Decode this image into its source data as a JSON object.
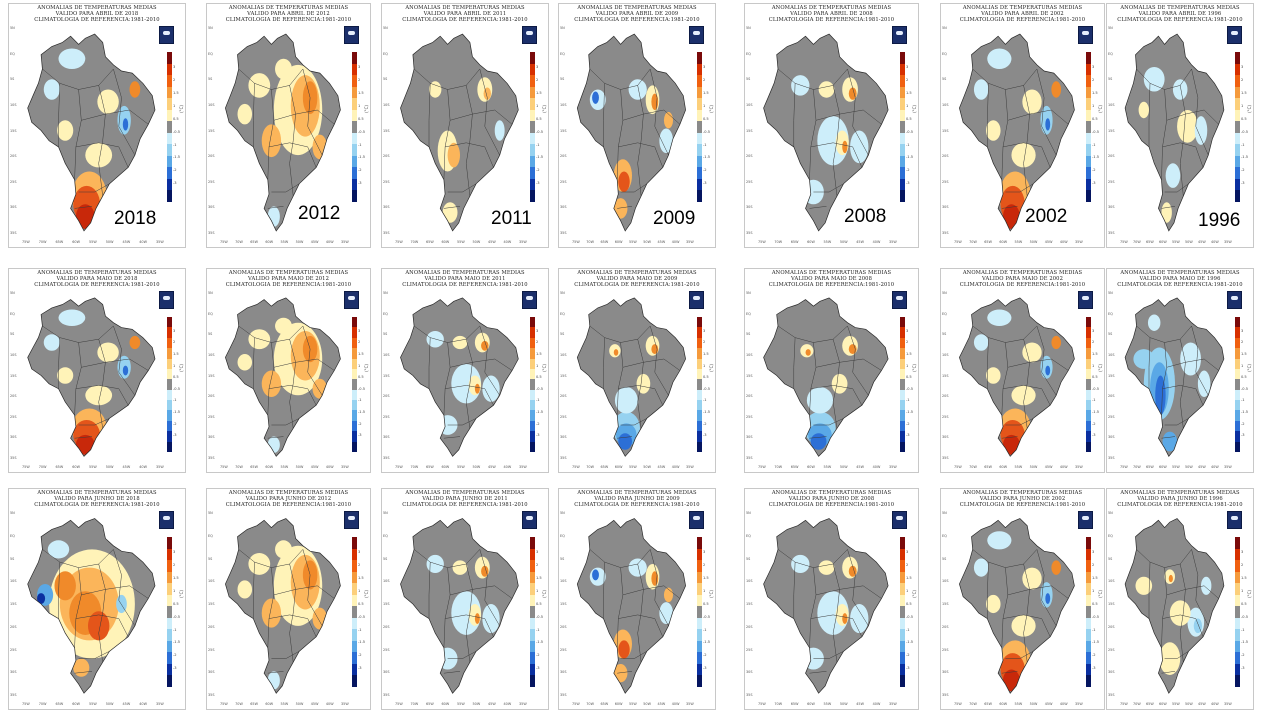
{
  "figure": {
    "rows": [
      {
        "month": "ABRIL",
        "panels": [
          {
            "year_label": "2018",
            "title": [
              "ANOMALIAS DE TEMPERATURAS MEDIAS",
              "VALIDO PARA ABRIL DE 2018",
              "CLIMATOLOGIA DE REFERENCIA:1981-2010"
            ],
            "pattern": "south-hot"
          },
          {
            "year_label": "2012",
            "title": [
              "ANOMALIAS DE TEMPERATURAS MEDIAS",
              "VALIDO PARA ABRIL DE 2012",
              "CLIMATOLOGIA DE REFERENCIA:1981-2010"
            ],
            "pattern": "center-east-warm"
          },
          {
            "year_label": "2011",
            "title": [
              "ANOMALIAS DE TEMPERATURAS MEDIAS",
              "VALIDO PARA ABRIL DE 2011",
              "CLIMATOLOGIA DE REFERENCIA:1981-2010"
            ],
            "pattern": "mostly-neutral"
          },
          {
            "year_label": "2009",
            "title": [
              "ANOMALIAS DE TEMPERATURAS MEDIAS",
              "VALIDO PARA ABRIL DE 2009",
              "CLIMATOLOGIA DE REFERENCIA:1981-2010"
            ],
            "pattern": "mixed"
          },
          {
            "year_label": "2008",
            "title": [
              "ANOMALIAS DE TEMPERATURAS MEDIAS",
              "VALIDO PARA ABRIL DE 2008",
              "CLIMATOLOGIA DE REFERENCIA:1981-2010"
            ],
            "pattern": "mixed-cool"
          },
          {
            "year_label": "2002",
            "title": [
              "ANOMALIAS DE TEMPERATURAS MEDIAS",
              "VALIDO PARA ABRIL DE 2002",
              "CLIMATOLOGIA DE REFERENCIA:1981-2010"
            ],
            "pattern": "south-hot"
          },
          {
            "year_label": "1996",
            "title": [
              "ANOMALIAS DE TEMPERATURAS MEDIAS",
              "VALIDO PARA ABRIL DE 1996",
              "CLIMATOLOGIA DE REFERENCIA:1981-2010"
            ],
            "pattern": "mostly-neutral-cool"
          }
        ]
      },
      {
        "month": "MAIO",
        "panels": [
          {
            "year_label": "",
            "title": [
              "ANOMALIAS DE TEMPERATURAS MEDIAS",
              "VALIDO PARA MAIO DE 2018",
              "CLIMATOLOGIA DE REFERENCIA:1981-2010"
            ],
            "pattern": "south-hot"
          },
          {
            "year_label": "",
            "title": [
              "ANOMALIAS DE TEMPERATURAS MEDIAS",
              "VALIDO PARA MAIO DE 2012",
              "CLIMATOLOGIA DE REFERENCIA:1981-2010"
            ],
            "pattern": "center-east-warm"
          },
          {
            "year_label": "",
            "title": [
              "ANOMALIAS DE TEMPERATURAS MEDIAS",
              "VALIDO PARA MAIO DE 2011",
              "CLIMATOLOGIA DE REFERENCIA:1981-2010"
            ],
            "pattern": "mixed-cool"
          },
          {
            "year_label": "",
            "title": [
              "ANOMALIAS DE TEMPERATURAS MEDIAS",
              "VALIDO PARA MAIO DE 2009",
              "CLIMATOLOGIA DE REFERENCIA:1981-2010"
            ],
            "pattern": "south-cold"
          },
          {
            "year_label": "",
            "title": [
              "ANOMALIAS DE TEMPERATURAS MEDIAS",
              "VALIDO PARA MAIO DE 2008",
              "CLIMATOLOGIA DE REFERENCIA:1981-2010"
            ],
            "pattern": "south-cold"
          },
          {
            "year_label": "",
            "title": [
              "ANOMALIAS DE TEMPERATURAS MEDIAS",
              "VALIDO PARA MAIO DE 2002",
              "CLIMATOLOGIA DE REFERENCIA:1981-2010"
            ],
            "pattern": "south-hot"
          },
          {
            "year_label": "",
            "title": [
              "ANOMALIAS DE TEMPERATURAS MEDIAS",
              "VALIDO PARA MAIO DE 1996",
              "CLIMATOLOGIA DE REFERENCIA:1981-2010"
            ],
            "pattern": "west-cold"
          }
        ]
      },
      {
        "month": "JUNHO",
        "panels": [
          {
            "year_label": "",
            "title": [
              "ANOMALIAS DE TEMPERATURAS MEDIAS",
              "VALIDO PARA JUNHO DE 2018",
              "CLIMATOLOGIA DE REFERENCIA:1981-2010"
            ],
            "pattern": "widespread-hot"
          },
          {
            "year_label": "",
            "title": [
              "ANOMALIAS DE TEMPERATURAS MEDIAS",
              "VALIDO PARA JUNHO DE 2012",
              "CLIMATOLOGIA DE REFERENCIA:1981-2010"
            ],
            "pattern": "center-east-warm"
          },
          {
            "year_label": "",
            "title": [
              "ANOMALIAS DE TEMPERATURAS MEDIAS",
              "VALIDO PARA JUNHO DE 2011",
              "CLIMATOLOGIA DE REFERENCIA:1981-2010"
            ],
            "pattern": "mixed-cool"
          },
          {
            "year_label": "",
            "title": [
              "ANOMALIAS DE TEMPERATURAS MEDIAS",
              "VALIDO PARA JUNHO DE 2009",
              "CLIMATOLOGIA DE REFERENCIA:1981-2010"
            ],
            "pattern": "mixed"
          },
          {
            "year_label": "",
            "title": [
              "ANOMALIAS DE TEMPERATURAS MEDIAS",
              "VALIDO PARA JUNHO DE 2008",
              "CLIMATOLOGIA DE REFERENCIA:1981-2010"
            ],
            "pattern": "mixed-cool"
          },
          {
            "year_label": "",
            "title": [
              "ANOMALIAS DE TEMPERATURAS MEDIAS",
              "VALIDO PARA JUNHO DE 2002",
              "CLIMATOLOGIA DE REFERENCIA:1981-2010"
            ],
            "pattern": "south-hot"
          },
          {
            "year_label": "",
            "title": [
              "ANOMALIAS DE TEMPERATURAS MEDIAS",
              "VALIDO PARA JUNHO DE 1996",
              "CLIMATOLOGIA DE REFERENCIA:1981-2010"
            ],
            "pattern": "south-cool"
          }
        ]
      }
    ],
    "colorbar": {
      "ticks": [
        "3",
        "2",
        "1.5",
        "1",
        "0.5",
        "-0.5",
        "-1",
        "-1.5",
        "-2",
        "-3"
      ],
      "unit": "(°C)",
      "colors": [
        "#7a0a0a",
        "#d73000",
        "#f06010",
        "#f59a3c",
        "#fccf7a",
        "#fff3b8",
        "#8a8a8a",
        "#cdeefa",
        "#96d2f0",
        "#5aa8e6",
        "#2c6fd6",
        "#0a2fa0",
        "#051560"
      ]
    },
    "lat_labels": [
      "5N",
      "EQ",
      "5S",
      "10S",
      "15S",
      "20S",
      "25S",
      "30S",
      "35S"
    ],
    "lon_labels": [
      "75W",
      "70W",
      "65W",
      "60W",
      "55W",
      "50W",
      "45W",
      "40W",
      "35W"
    ]
  }
}
